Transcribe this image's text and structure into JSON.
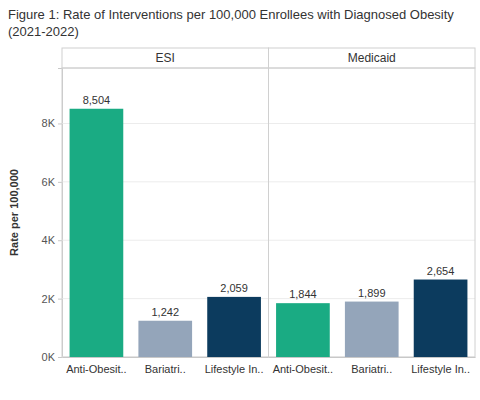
{
  "chart_data": {
    "type": "bar",
    "title": "Figure 1: Rate of Interventions per 100,000 Enrollees with Diagnosed Obesity (2021-2022)",
    "ylabel": "Rate per 100,000",
    "categories": [
      "Anti-Obesit..",
      "Bariatri..",
      "Lifestyle In.."
    ],
    "colors": [
      "#1aab83",
      "#94a5ba",
      "#0c3b5e"
    ],
    "series": [
      {
        "name": "ESI",
        "values": [
          8504,
          1242,
          2059
        ],
        "value_labels": [
          "8,504",
          "1,242",
          "2,059"
        ]
      },
      {
        "name": "Medicaid",
        "values": [
          1844,
          1899,
          2654
        ],
        "value_labels": [
          "1,844",
          "1,899",
          "2,654"
        ]
      }
    ],
    "ylim": [
      0,
      9900
    ],
    "yticks": [
      {
        "value": 0,
        "label": "0K"
      },
      {
        "value": 2000,
        "label": "2K"
      },
      {
        "value": 4000,
        "label": "4K"
      },
      {
        "value": 6000,
        "label": "6K"
      },
      {
        "value": 8000,
        "label": "8K"
      }
    ],
    "grid": true,
    "data_labels": true
  }
}
